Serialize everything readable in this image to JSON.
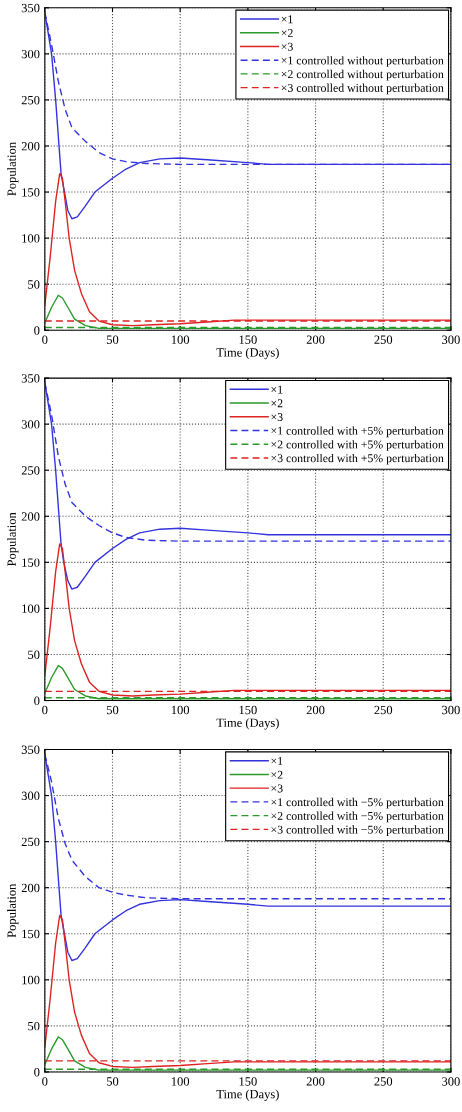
{
  "chart_data": [
    {
      "type": "line",
      "xlabel": "Time (Days)",
      "ylabel": "Population",
      "xlim": [
        0,
        300
      ],
      "ylim": [
        0,
        350
      ],
      "xticks": [
        0,
        50,
        100,
        150,
        200,
        250,
        300
      ],
      "yticks": [
        0,
        50,
        100,
        150,
        200,
        250,
        300,
        350
      ],
      "grid": true,
      "legend": "top right",
      "series": [
        {
          "name": "×1",
          "color": "#3333dd",
          "line_style": "solid",
          "x": [
            0,
            5,
            8,
            10.5,
            12,
            17,
            20,
            24,
            30,
            37,
            50,
            60,
            70,
            85,
            100,
            120,
            150,
            165,
            300
          ],
          "values": [
            345,
            300,
            250,
            200,
            170,
            130,
            121,
            123,
            135,
            150,
            165,
            175,
            182,
            186,
            187,
            185,
            182,
            180,
            180
          ]
        },
        {
          "name": "×2",
          "color": "#2a9a2a",
          "line_style": "solid",
          "x": [
            0,
            5,
            10,
            13,
            17,
            22,
            30,
            40,
            300
          ],
          "values": [
            8,
            25,
            38,
            35,
            25,
            12,
            5,
            2,
            2
          ]
        },
        {
          "name": "×3",
          "color": "#dd2222",
          "line_style": "solid",
          "x": [
            0,
            4,
            8,
            11,
            13,
            15,
            18,
            22,
            27,
            33,
            40,
            50,
            65,
            80,
            100,
            120,
            140,
            300
          ],
          "values": [
            27,
            80,
            140,
            170,
            165,
            140,
            100,
            65,
            40,
            20,
            10,
            6,
            5,
            6,
            7,
            9,
            11,
            11
          ]
        },
        {
          "name": "×1 controlled without perturbation",
          "color": "#3333dd",
          "line_style": "dashed",
          "x": [
            0,
            5,
            10,
            15,
            20,
            30,
            40,
            50,
            60,
            75,
            100,
            300
          ],
          "values": [
            345,
            310,
            270,
            240,
            220,
            205,
            193,
            186,
            183,
            181,
            180,
            180
          ]
        },
        {
          "name": "×2 controlled without perturbation",
          "color": "#2a9a2a",
          "line_style": "dashed",
          "x": [
            0,
            300
          ],
          "values": [
            3,
            3
          ]
        },
        {
          "name": "×3 controlled without perturbation",
          "color": "#dd2222",
          "line_style": "dashed",
          "x": [
            0,
            300
          ],
          "values": [
            10,
            10
          ]
        }
      ]
    },
    {
      "type": "line",
      "xlabel": "Time (Days)",
      "ylabel": "Population",
      "xlim": [
        0,
        300
      ],
      "ylim": [
        0,
        350
      ],
      "xticks": [
        0,
        50,
        100,
        150,
        200,
        250,
        300
      ],
      "yticks": [
        0,
        50,
        100,
        150,
        200,
        250,
        300,
        350
      ],
      "grid": true,
      "legend": "top right",
      "series": [
        {
          "name": "×1",
          "color": "#3333dd",
          "line_style": "solid",
          "x": [
            0,
            5,
            8,
            10.5,
            12,
            14,
            17,
            20,
            24,
            30,
            37,
            50,
            60,
            70,
            85,
            100,
            120,
            150,
            165,
            300
          ],
          "values": [
            345,
            300,
            250,
            200,
            170,
            150,
            130,
            121,
            123,
            135,
            150,
            165,
            175,
            182,
            186,
            187,
            185,
            182,
            180,
            180
          ]
        },
        {
          "name": "×2",
          "color": "#2a9a2a",
          "line_style": "solid",
          "x": [
            0,
            5,
            10,
            13,
            17,
            22,
            30,
            40,
            300
          ],
          "values": [
            8,
            25,
            38,
            35,
            25,
            12,
            5,
            2,
            2
          ]
        },
        {
          "name": "×3",
          "color": "#dd2222",
          "line_style": "solid",
          "x": [
            0,
            4,
            8,
            11,
            13,
            15,
            18,
            22,
            27,
            33,
            40,
            50,
            65,
            80,
            100,
            120,
            140,
            300
          ],
          "values": [
            27,
            80,
            140,
            170,
            165,
            140,
            100,
            65,
            40,
            20,
            10,
            6,
            5,
            6,
            7,
            9,
            11,
            11
          ]
        },
        {
          "name": "×1 controlled with +5% perturbation",
          "color": "#3333dd",
          "line_style": "dashed",
          "x": [
            0,
            5,
            10,
            15,
            20,
            30,
            40,
            50,
            60,
            75,
            100,
            300
          ],
          "values": [
            345,
            310,
            265,
            235,
            215,
            200,
            190,
            182,
            177,
            174,
            173,
            173
          ]
        },
        {
          "name": "×2 controlled with +5% perturbation",
          "color": "#2a9a2a",
          "line_style": "dashed",
          "x": [
            0,
            300
          ],
          "values": [
            3,
            3
          ]
        },
        {
          "name": "×3 controlled with +5% perturbation",
          "color": "#dd2222",
          "line_style": "dashed",
          "x": [
            0,
            300
          ],
          "values": [
            10,
            10
          ]
        }
      ]
    },
    {
      "type": "line",
      "xlabel": "Time (Days)",
      "ylabel": "Population",
      "xlim": [
        0,
        300
      ],
      "ylim": [
        0,
        350
      ],
      "xticks": [
        0,
        50,
        100,
        150,
        200,
        250,
        300
      ],
      "yticks": [
        0,
        50,
        100,
        150,
        200,
        250,
        300,
        350
      ],
      "grid": true,
      "legend": "top right",
      "series": [
        {
          "name": "×1",
          "color": "#3333dd",
          "line_style": "solid",
          "x": [
            0,
            5,
            8,
            10.5,
            12,
            17,
            20,
            24,
            30,
            37,
            50,
            60,
            70,
            85,
            100,
            120,
            150,
            165,
            300
          ],
          "values": [
            345,
            300,
            250,
            200,
            170,
            130,
            121,
            123,
            135,
            150,
            165,
            175,
            182,
            186,
            187,
            185,
            182,
            180,
            180
          ]
        },
        {
          "name": "×2",
          "color": "#2a9a2a",
          "line_style": "solid",
          "x": [
            0,
            5,
            10,
            13,
            17,
            22,
            30,
            40,
            300
          ],
          "values": [
            8,
            25,
            38,
            35,
            25,
            12,
            5,
            2,
            2
          ]
        },
        {
          "name": "×3",
          "color": "#dd2222",
          "line_style": "solid",
          "x": [
            0,
            4,
            8,
            11,
            13,
            15,
            18,
            22,
            27,
            33,
            40,
            50,
            65,
            80,
            100,
            120,
            140,
            300
          ],
          "values": [
            27,
            80,
            140,
            170,
            165,
            140,
            100,
            65,
            40,
            20,
            10,
            6,
            5,
            6,
            7,
            9,
            11,
            11
          ]
        },
        {
          "name": "×1 controlled with −5% perturbation",
          "color": "#3333dd",
          "line_style": "dashed",
          "x": [
            0,
            5,
            10,
            15,
            20,
            30,
            40,
            50,
            60,
            75,
            100,
            300
          ],
          "values": [
            345,
            315,
            275,
            248,
            230,
            212,
            200,
            195,
            192,
            189,
            188,
            188
          ]
        },
        {
          "name": "×2 controlled with −5% perturbation",
          "color": "#2a9a2a",
          "line_style": "dashed",
          "x": [
            0,
            300
          ],
          "values": [
            3,
            3
          ]
        },
        {
          "name": "×3 controlled with −5% perturbation",
          "color": "#dd2222",
          "line_style": "dashed",
          "x": [
            0,
            300
          ],
          "values": [
            12,
            12
          ]
        }
      ]
    }
  ]
}
